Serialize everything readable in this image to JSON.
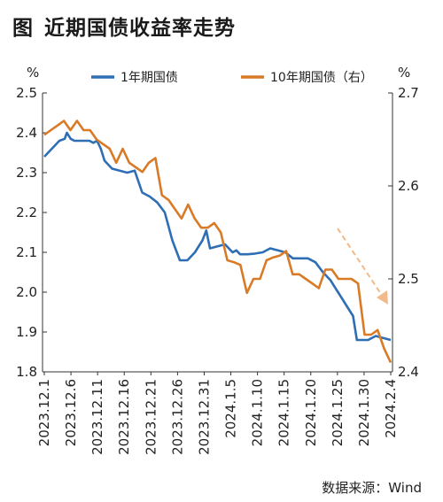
{
  "figure": {
    "label": "图",
    "title": "近期国债收益率走势"
  },
  "source": "数据来源：Wind",
  "colors": {
    "s1": "#2e6eb5",
    "s2": "#d97a26",
    "arrow": "#f2b98a"
  },
  "chart_data": {
    "type": "line",
    "y_left": {
      "unit": "%",
      "range": [
        1.8,
        2.5
      ],
      "ticks": [
        "2.5",
        "2.4",
        "2.3",
        "2.2",
        "2.1",
        "2.0",
        "1.9",
        "1.8"
      ]
    },
    "y_right": {
      "unit": "%",
      "range": [
        2.4,
        2.7
      ],
      "ticks": [
        "2.7",
        "2.6",
        "2.5",
        "2.4"
      ]
    },
    "x_ticks": [
      "2023.12.1",
      "2023.12.6",
      "2023.12.11",
      "2023.12.16",
      "2023.12.21",
      "2023.12.26",
      "2023.12.31",
      "2024.1.5",
      "2024.1.10",
      "2024.1.15",
      "2024.1.20",
      "2024.1.25",
      "2024.1.30",
      "2024.2.4"
    ],
    "grid": false,
    "legend": "top",
    "series": [
      {
        "name": "1年期国债",
        "axis": "left",
        "color": "#2e6eb5",
        "points": [
          [
            0,
            2.34
          ],
          [
            1,
            2.36
          ],
          [
            2,
            2.38
          ],
          [
            2.7,
            2.385
          ],
          [
            3,
            2.4
          ],
          [
            3.5,
            2.385
          ],
          [
            4,
            2.38
          ],
          [
            5,
            2.38
          ],
          [
            6,
            2.38
          ],
          [
            6.5,
            2.375
          ],
          [
            7,
            2.38
          ],
          [
            7.5,
            2.36
          ],
          [
            8,
            2.33
          ],
          [
            9,
            2.31
          ],
          [
            10,
            2.305
          ],
          [
            11,
            2.3
          ],
          [
            12,
            2.305
          ],
          [
            13,
            2.25
          ],
          [
            14,
            2.24
          ],
          [
            15,
            2.225
          ],
          [
            16,
            2.2
          ],
          [
            17,
            2.13
          ],
          [
            18,
            2.08
          ],
          [
            19,
            2.08
          ],
          [
            20,
            2.1
          ],
          [
            21,
            2.13
          ],
          [
            21.5,
            2.155
          ],
          [
            22,
            2.11
          ],
          [
            23,
            2.115
          ],
          [
            24,
            2.12
          ],
          [
            25,
            2.1
          ],
          [
            25.5,
            2.105
          ],
          [
            26,
            2.095
          ],
          [
            27,
            2.095
          ],
          [
            28,
            2.097
          ],
          [
            29,
            2.1
          ],
          [
            30,
            2.11
          ],
          [
            31,
            2.105
          ],
          [
            32,
            2.1
          ],
          [
            33,
            2.085
          ],
          [
            34,
            2.085
          ],
          [
            35,
            2.085
          ],
          [
            36,
            2.075
          ],
          [
            37,
            2.05
          ],
          [
            38,
            2.03
          ],
          [
            39,
            2.0
          ],
          [
            40,
            1.97
          ],
          [
            41,
            1.94
          ],
          [
            41.5,
            1.88
          ],
          [
            42,
            1.88
          ],
          [
            43,
            1.88
          ],
          [
            44,
            1.89
          ],
          [
            45,
            1.885
          ],
          [
            46,
            1.88
          ]
        ]
      },
      {
        "name": "10年期国债（右）",
        "axis": "right",
        "color": "#d97a26",
        "points": [
          [
            0,
            2.655
          ],
          [
            1,
            2.66
          ],
          [
            2,
            2.665
          ],
          [
            3,
            2.67
          ],
          [
            4,
            2.66
          ],
          [
            5,
            2.67
          ],
          [
            6,
            2.66
          ],
          [
            7,
            2.66
          ],
          [
            8,
            2.65
          ],
          [
            9,
            2.645
          ],
          [
            10,
            2.64
          ],
          [
            11,
            2.625
          ],
          [
            12,
            2.64
          ],
          [
            13,
            2.625
          ],
          [
            14,
            2.62
          ],
          [
            15,
            2.615
          ],
          [
            16,
            2.625
          ],
          [
            17,
            2.63
          ],
          [
            18,
            2.59
          ],
          [
            19,
            2.585
          ],
          [
            20,
            2.575
          ],
          [
            21,
            2.565
          ],
          [
            22,
            2.58
          ],
          [
            23,
            2.565
          ],
          [
            24,
            2.555
          ],
          [
            25,
            2.555
          ],
          [
            26,
            2.56
          ],
          [
            27,
            2.55
          ],
          [
            28,
            2.52
          ],
          [
            29,
            2.518
          ],
          [
            30,
            2.515
          ],
          [
            31,
            2.485
          ],
          [
            32,
            2.5
          ],
          [
            33,
            2.5
          ],
          [
            34,
            2.52
          ],
          [
            35,
            2.523
          ],
          [
            36,
            2.525
          ],
          [
            37,
            2.53
          ],
          [
            38,
            2.505
          ],
          [
            39,
            2.505
          ],
          [
            40,
            2.5
          ],
          [
            41,
            2.495
          ],
          [
            42,
            2.49
          ],
          [
            43,
            2.51
          ],
          [
            44,
            2.51
          ],
          [
            45,
            2.5
          ],
          [
            46,
            2.5
          ],
          [
            47,
            2.5
          ],
          [
            48,
            2.495
          ],
          [
            49,
            2.44
          ],
          [
            50,
            2.44
          ],
          [
            51,
            2.445
          ],
          [
            52,
            2.425
          ],
          [
            53,
            2.41
          ]
        ]
      }
    ]
  },
  "ui": {
    "y_left_unit": "%",
    "y_right_unit": "%"
  }
}
